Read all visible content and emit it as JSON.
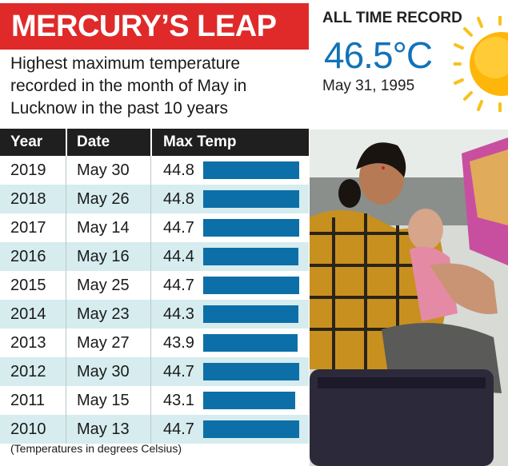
{
  "banner": {
    "title": "MERCURY’S LEAP"
  },
  "subtitle": "Highest maximum temperature recorded in the month of May in Lucknow in the past 10 years",
  "table": {
    "headers": [
      "Year",
      "Date",
      "Max Temp"
    ],
    "footnote": "(Temperatures in degrees Celsius)"
  },
  "record": {
    "label": "ALL TIME RECORD",
    "value": "46.5°C",
    "date": "May 31, 1995"
  },
  "colors": {
    "banner": "#e02a2a",
    "bar": "#0d6fa7",
    "row_alt": "#d6ecee",
    "record_value": "#1173b8"
  },
  "icons": {
    "sun": "sun-icon"
  },
  "chart_data": {
    "type": "bar",
    "categories": [
      "2019",
      "2018",
      "2017",
      "2016",
      "2015",
      "2014",
      "2013",
      "2012",
      "2011",
      "2010"
    ],
    "dates": [
      "May 30",
      "May 26",
      "May 14",
      "May 16",
      "May 25",
      "May 23",
      "May 27",
      "May 30",
      "May 15",
      "May 13"
    ],
    "values": [
      44.8,
      44.8,
      44.7,
      44.4,
      44.7,
      44.3,
      43.9,
      44.7,
      43.1,
      44.7
    ],
    "title": "MERCURY’S LEAP",
    "xlabel": "",
    "ylabel": "Max Temp",
    "unit": "Celsius"
  }
}
